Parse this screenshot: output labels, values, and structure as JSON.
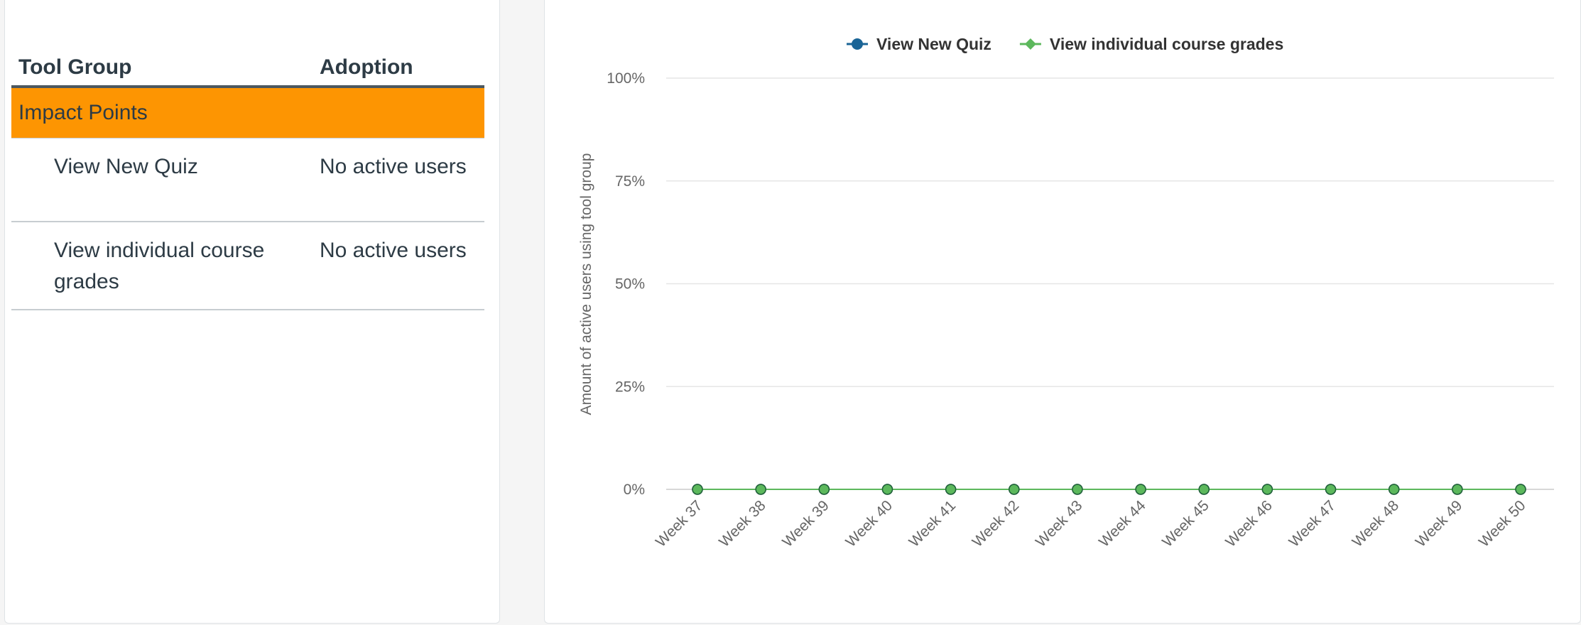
{
  "table": {
    "headers": {
      "tool_group": "Tool Group",
      "adoption": "Adoption"
    },
    "group": {
      "label": "Impact Points",
      "color": "#fd9502"
    },
    "rows": [
      {
        "tool": "View New Quiz",
        "adoption": "No active users"
      },
      {
        "tool": "View individual course grades",
        "adoption": "No active users"
      }
    ]
  },
  "chart_data": {
    "type": "line",
    "title": "",
    "ylabel": "Amount of active users using tool group",
    "xlabel": "",
    "categories": [
      "Week 37",
      "Week 38",
      "Week 39",
      "Week 40",
      "Week 41",
      "Week 42",
      "Week 43",
      "Week 44",
      "Week 45",
      "Week 46",
      "Week 47",
      "Week 48",
      "Week 49",
      "Week 50"
    ],
    "y_ticks": [
      "0%",
      "25%",
      "50%",
      "75%",
      "100%"
    ],
    "ylim": [
      0,
      100
    ],
    "grid": true,
    "legend_position": "top",
    "series": [
      {
        "name": "View New Quiz",
        "color": "#1a6496",
        "marker": "circle",
        "values": [
          0,
          0,
          0,
          0,
          0,
          0,
          0,
          0,
          0,
          0,
          0,
          0,
          0,
          0
        ]
      },
      {
        "name": "View individual course grades",
        "color": "#5cb85c",
        "marker": "diamond",
        "values": [
          0,
          0,
          0,
          0,
          0,
          0,
          0,
          0,
          0,
          0,
          0,
          0,
          0,
          0
        ]
      }
    ]
  }
}
